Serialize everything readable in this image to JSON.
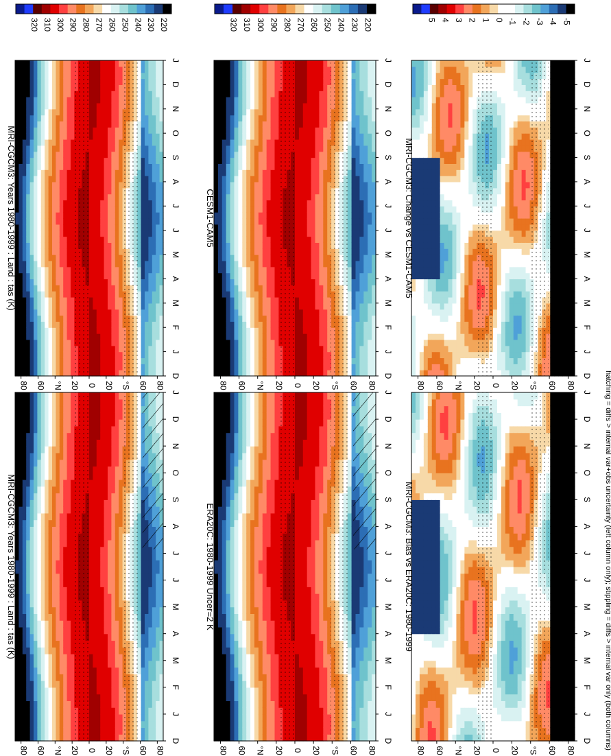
{
  "chart_data": [
    {
      "type": "heatmap",
      "id": "p1",
      "title": "MRI-CGCM3: Years 1980-1999 : Land : tas (K)",
      "x": [
        "D",
        "J",
        "F",
        "M",
        "A",
        "M",
        "J",
        "J",
        "A",
        "S",
        "O",
        "N",
        "D",
        "J"
      ],
      "y": [
        "80",
        "60",
        "°N",
        "20",
        "0",
        "20",
        "°S",
        "60",
        "80"
      ],
      "colorbar": [
        "320",
        "310",
        "300",
        "290",
        "280",
        "270",
        "260",
        "250",
        "240",
        "230",
        "220"
      ],
      "hatching": "south polar"
    },
    {
      "type": "heatmap",
      "id": "p2",
      "title": "MRI-CGCM3: Years 1980-1999 : Land : tas (K)",
      "x": [
        "D",
        "J",
        "F",
        "M",
        "A",
        "M",
        "J",
        "J",
        "A",
        "S",
        "O",
        "N",
        "D",
        "J"
      ],
      "y": [
        "80",
        "60",
        "°N",
        "20",
        "0",
        "20",
        "°S",
        "60",
        "80"
      ],
      "colorbar": [
        "320",
        "310",
        "300",
        "290",
        "280",
        "270",
        "260",
        "250",
        "240",
        "230",
        "220"
      ],
      "stippling": "south polar"
    },
    {
      "type": "heatmap",
      "id": "p3",
      "title": "ERA20C: 1980-1999 Uncer=2 K",
      "x": [
        "D",
        "J",
        "F",
        "M",
        "A",
        "M",
        "J",
        "J",
        "A",
        "S",
        "O",
        "N",
        "D",
        "J"
      ],
      "y": [
        "80",
        "60",
        "°N",
        "20",
        "0",
        "20",
        "°S",
        "60",
        "80"
      ],
      "colorbar": [
        "320",
        "310",
        "300",
        "290",
        "280",
        "270",
        "260",
        "250",
        "240",
        "230",
        "220"
      ]
    },
    {
      "type": "heatmap",
      "id": "p4",
      "title": "CESM1-CAM5",
      "x": [
        "D",
        "J",
        "F",
        "M",
        "A",
        "M",
        "J",
        "J",
        "A",
        "S",
        "O",
        "N",
        "D",
        "J"
      ],
      "y": [
        "80",
        "60",
        "°N",
        "20",
        "0",
        "20",
        "°S",
        "60",
        "80"
      ],
      "colorbar": [
        "320",
        "310",
        "300",
        "290",
        "280",
        "270",
        "260",
        "250",
        "240",
        "230",
        "220"
      ]
    },
    {
      "type": "heatmap",
      "id": "p5",
      "title": "MRI-CGCM3: Bias vs ERA20C: 1980-1999",
      "x": [
        "D",
        "J",
        "F",
        "M",
        "A",
        "M",
        "J",
        "J",
        "A",
        "S",
        "O",
        "N",
        "D",
        "J"
      ],
      "y": [
        "80",
        "60",
        "°N",
        "20",
        "0",
        "20",
        "°S",
        "60",
        "80"
      ],
      "colorbar": [
        "5",
        "4",
        "3",
        "2",
        "1",
        "0",
        "-1",
        "-2",
        "-3",
        "-4",
        "-5"
      ]
    },
    {
      "type": "heatmap",
      "id": "p6",
      "title": "MRI-CGCM3: Change vs CESM1-CAM5",
      "x": [
        "D",
        "J",
        "F",
        "M",
        "A",
        "M",
        "J",
        "J",
        "A",
        "S",
        "O",
        "N",
        "D",
        "J"
      ],
      "y": [
        "80",
        "60",
        "°N",
        "20",
        "0",
        "20",
        "°S",
        "60",
        "80"
      ],
      "colorbar": [
        "5",
        "4",
        "3",
        "2",
        "1",
        "0",
        "-1",
        "-2",
        "-3",
        "-4",
        "-5"
      ]
    }
  ],
  "footnote": "hatching = diffs > internal var+obs uncertainty (left column only); stippling = diffs > internal var only (both columns)",
  "colors": {
    "tas_scale": [
      "#0a1a8c",
      "#1f3cff",
      "#5a0000",
      "#a00000",
      "#e00000",
      "#ff4040",
      "#ff8a66",
      "#e8731f",
      "#f2a65a",
      "#f7d9a8",
      "#ffffff",
      "#d9f2f2",
      "#a7dede",
      "#6fc3cc",
      "#4fa0d8",
      "#2c6eb5",
      "#1a3a75",
      "#000000"
    ],
    "bias_scale": [
      "#0a1a8c",
      "#1f3cff",
      "#5a0000",
      "#a00000",
      "#e00000",
      "#ff4040",
      "#ff8a66",
      "#e8731f",
      "#f2a65a",
      "#f7d9a8",
      "#ffffff",
      "#ffffff",
      "#d9f2f2",
      "#a7dede",
      "#6fc3cc",
      "#4fa0d8",
      "#2c6eb5",
      "#1a3a75",
      "#000000"
    ]
  }
}
